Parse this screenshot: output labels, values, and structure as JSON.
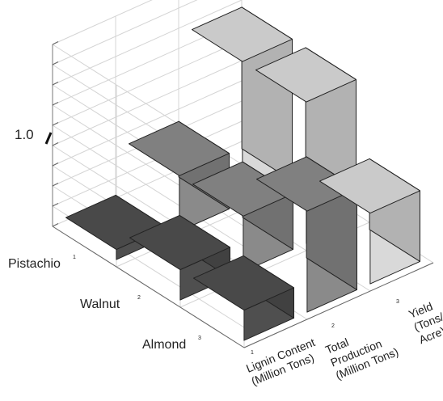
{
  "chart_data": {
    "type": "bar3d",
    "title": "",
    "zlabel": "",
    "ztick_label": "1.0",
    "rows": [
      "Pistachio",
      "Walnut",
      "Almond"
    ],
    "row_indices": [
      "1",
      "2",
      "3"
    ],
    "columns": [
      [
        "Lignin Content",
        "(Million Tons)"
      ],
      [
        "Total",
        "Production",
        "(Million Tons)"
      ],
      [
        "Yield",
        "(Tons/",
        "Acre)"
      ]
    ],
    "column_indices": [
      "1",
      "2",
      "3"
    ],
    "values": [
      [
        0.1,
        0.55,
        1.4
      ],
      [
        0.3,
        0.55,
        1.4
      ],
      [
        0.3,
        1.0,
        0.7
      ]
    ],
    "zlim": [
      0,
      1.8
    ],
    "column_colors": [
      "#4f4f4f",
      "#8a8a8a",
      "#d9d9d9"
    ],
    "grid": true
  }
}
